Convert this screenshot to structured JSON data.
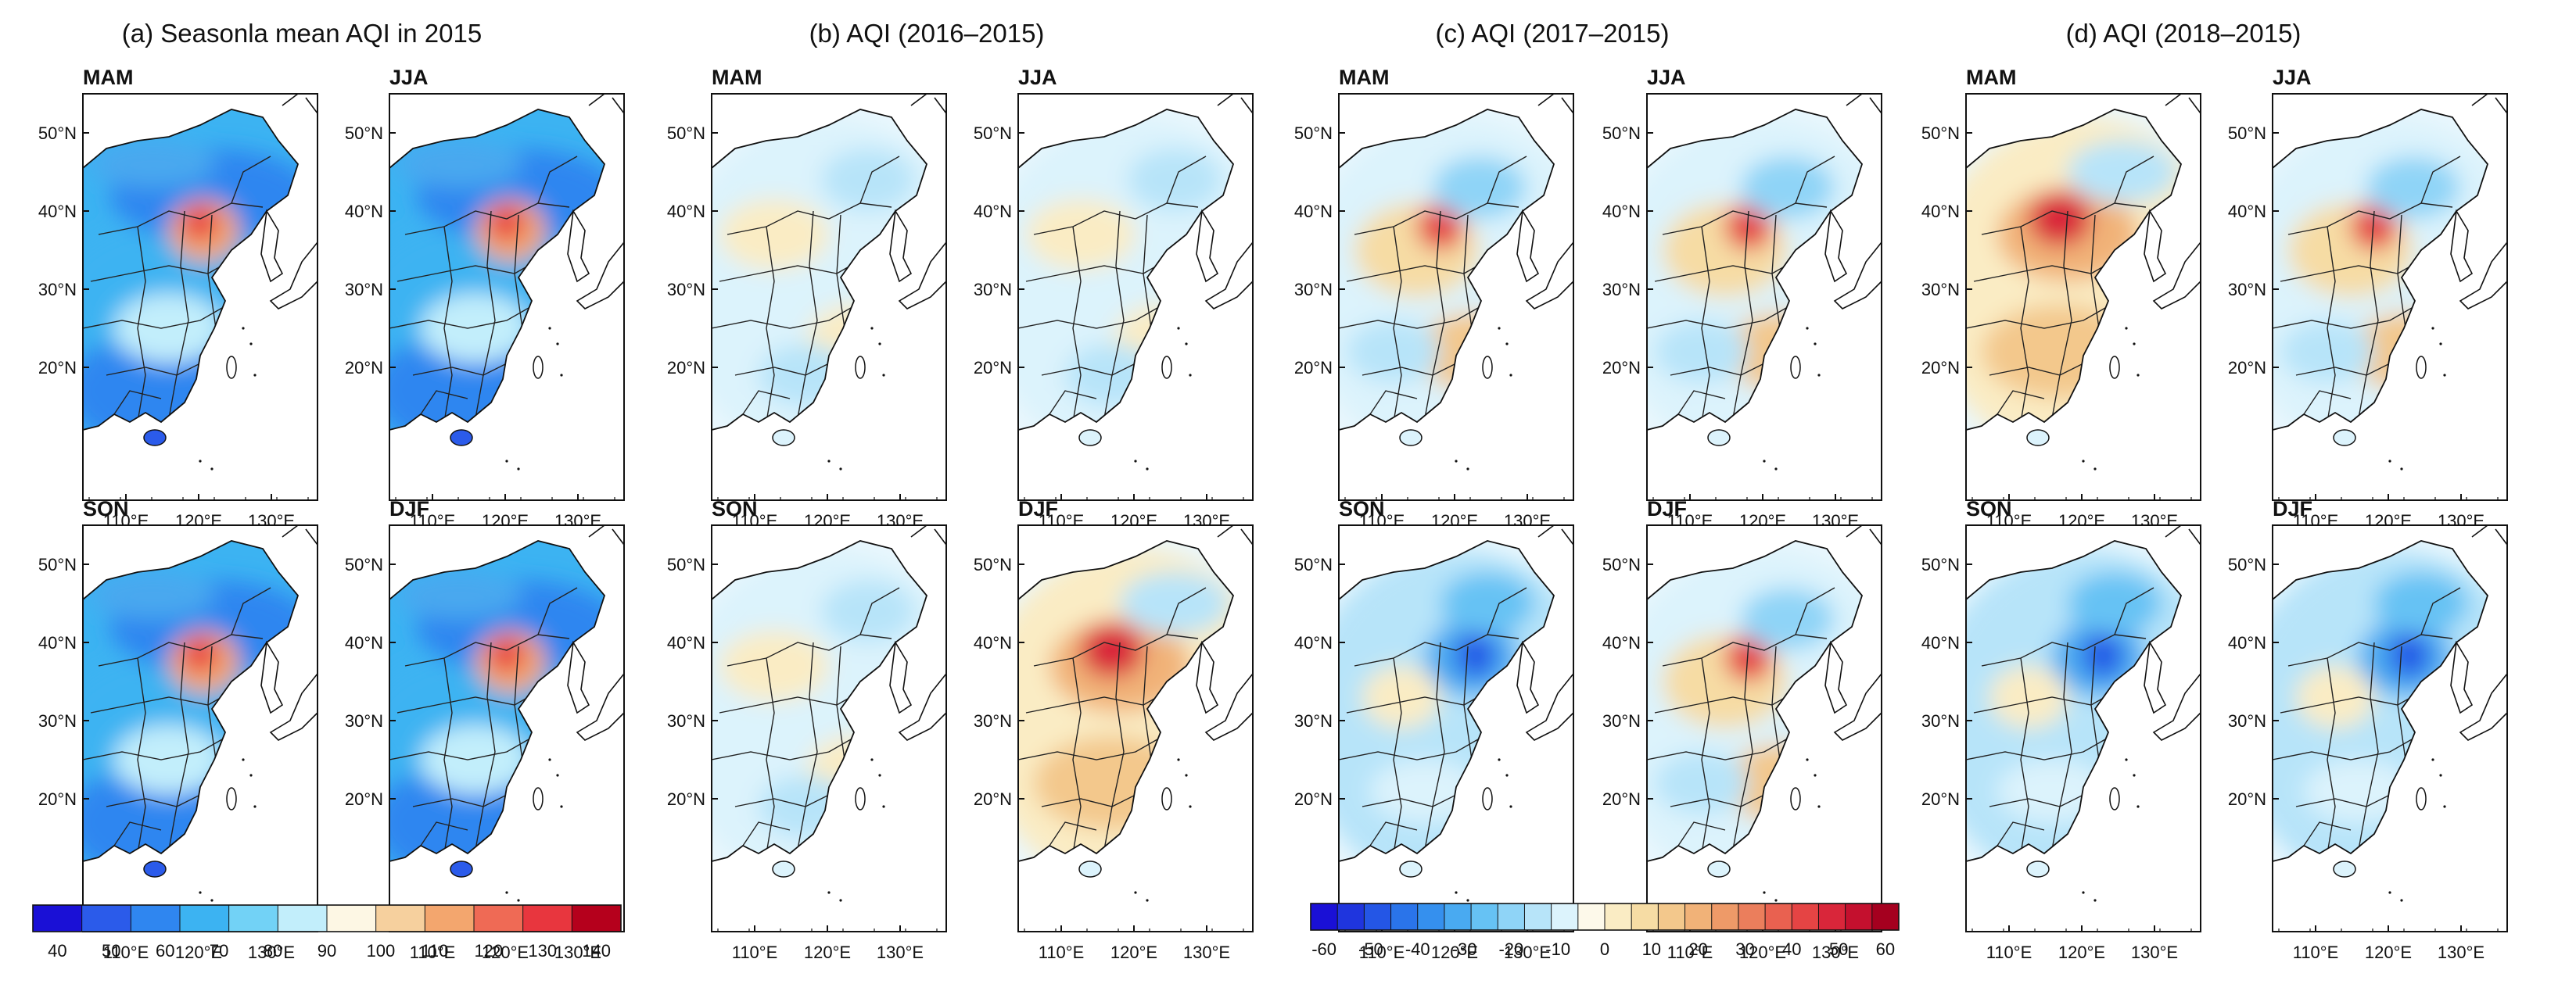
{
  "groups": [
    {
      "title": "(a) Seasonla mean AQI in 2015",
      "kind": "mean"
    },
    {
      "title": "(b) AQI (2016–2015)",
      "kind": "diff"
    },
    {
      "title": "(c) AQI (2017–2015)",
      "kind": "diff"
    },
    {
      "title": "(d) AQI (2018–2015)",
      "kind": "diff"
    }
  ],
  "seasons": [
    "MAM",
    "JJA",
    "SON",
    "DJF"
  ],
  "lat_ticks": [
    "50°N",
    "40°N",
    "30°N",
    "20°N"
  ],
  "lon_ticks": [
    "110°E",
    "120°E",
    "130°E"
  ],
  "mean_colorbar": {
    "labels": [
      "40",
      "50",
      "60",
      "70",
      "80",
      "90",
      "100",
      "110",
      "120",
      "130",
      "140"
    ],
    "colors": [
      "#1a10d6",
      "#2b5bea",
      "#2f86f0",
      "#3cb3f2",
      "#72d2f6",
      "#c2eefb",
      "#fdf7e4",
      "#f6d09e",
      "#f3a66e",
      "#ef6a55",
      "#e8363e",
      "#b5001c"
    ]
  },
  "diff_colorbar": {
    "labels": [
      "-60",
      "-50",
      "-40",
      "-30",
      "-20",
      "-10",
      "0",
      "10",
      "20",
      "30",
      "40",
      "50",
      "60"
    ],
    "colors": [
      "#1a10d6",
      "#1f35de",
      "#2456e6",
      "#2a74ea",
      "#3590ee",
      "#49aaf1",
      "#66c2f4",
      "#8fd4f7",
      "#b7e4f9",
      "#dcf3fc",
      "#fdf9ea",
      "#faecc4",
      "#f6dca4",
      "#f3c88c",
      "#f1b278",
      "#ee9a68",
      "#eb7e5c",
      "#e96150",
      "#e54444",
      "#d9263a",
      "#c4102e",
      "#a5001f"
    ]
  },
  "panel_tones": {
    "a": {
      "MAM": "mean",
      "JJA": "mean",
      "SON": "mean",
      "DJF": "mean"
    },
    "b": {
      "MAM": "near0",
      "JJA": "near0",
      "SON": "near0",
      "DJF": "positive"
    },
    "c": {
      "MAM": "mixed",
      "JJA": "mixed",
      "SON": "negative",
      "DJF": "mixed"
    },
    "d": {
      "MAM": "positive",
      "JJA": "mixed",
      "SON": "negative",
      "DJF": "negative"
    }
  }
}
